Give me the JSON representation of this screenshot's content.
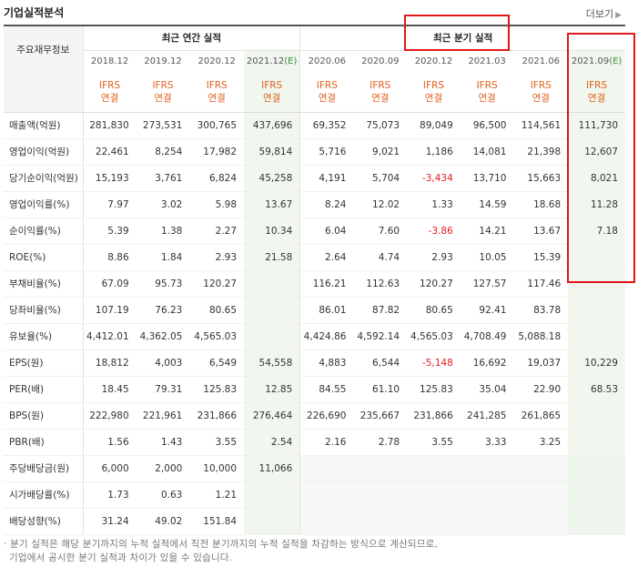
{
  "section_title": "기업실적분석",
  "more_label": "더보기",
  "row_header_label": "주요재무정보",
  "groups": {
    "annual": "최근 연간 실적",
    "quarterly": "최근 분기 실적"
  },
  "columns": [
    {
      "period": "2018.12",
      "est": "",
      "ifrs": "IFRS",
      "basis": "연결"
    },
    {
      "period": "2019.12",
      "est": "",
      "ifrs": "IFRS",
      "basis": "연결"
    },
    {
      "period": "2020.12",
      "est": "",
      "ifrs": "IFRS",
      "basis": "연결"
    },
    {
      "period": "2021.12",
      "est": "(E)",
      "ifrs": "IFRS",
      "basis": "연결"
    },
    {
      "period": "2020.06",
      "est": "",
      "ifrs": "IFRS",
      "basis": "연결"
    },
    {
      "period": "2020.09",
      "est": "",
      "ifrs": "IFRS",
      "basis": "연결"
    },
    {
      "period": "2020.12",
      "est": "",
      "ifrs": "IFRS",
      "basis": "연결"
    },
    {
      "period": "2021.03",
      "est": "",
      "ifrs": "IFRS",
      "basis": "연결"
    },
    {
      "period": "2021.06",
      "est": "",
      "ifrs": "IFRS",
      "basis": "연결"
    },
    {
      "period": "2021.09",
      "est": "(E)",
      "ifrs": "IFRS",
      "basis": "연결"
    }
  ],
  "rows": [
    {
      "label": "매출액(억원)",
      "values": [
        "281,830",
        "273,531",
        "300,765",
        "437,696",
        "69,352",
        "75,073",
        "89,049",
        "96,500",
        "114,561",
        "111,730"
      ]
    },
    {
      "label": "영업이익(억원)",
      "values": [
        "22,461",
        "8,254",
        "17,982",
        "59,814",
        "5,716",
        "9,021",
        "1,186",
        "14,081",
        "21,398",
        "12,607"
      ]
    },
    {
      "label": "당기순이익(억원)",
      "values": [
        "15,193",
        "3,761",
        "6,824",
        "45,258",
        "4,191",
        "5,704",
        "-3,434",
        "13,710",
        "15,663",
        "8,021"
      ]
    },
    {
      "label": "영업이익률(%)",
      "values": [
        "7.97",
        "3.02",
        "5.98",
        "13.67",
        "8.24",
        "12.02",
        "1.33",
        "14.59",
        "18.68",
        "11.28"
      ]
    },
    {
      "label": "순이익률(%)",
      "values": [
        "5.39",
        "1.38",
        "2.27",
        "10.34",
        "6.04",
        "7.60",
        "-3.86",
        "14.21",
        "13.67",
        "7.18"
      ]
    },
    {
      "label": "ROE(%)",
      "values": [
        "8.86",
        "1.84",
        "2.93",
        "21.58",
        "2.64",
        "4.74",
        "2.93",
        "10.05",
        "15.39",
        ""
      ]
    },
    {
      "label": "부채비율(%)",
      "values": [
        "67.09",
        "95.73",
        "120.27",
        "",
        "116.21",
        "112.63",
        "120.27",
        "127.57",
        "117.46",
        ""
      ]
    },
    {
      "label": "당좌비율(%)",
      "values": [
        "107.19",
        "76.23",
        "80.65",
        "",
        "86.01",
        "87.82",
        "80.65",
        "92.41",
        "83.78",
        ""
      ]
    },
    {
      "label": "유보율(%)",
      "values": [
        "4,412.01",
        "4,362.05",
        "4,565.03",
        "",
        "4,424.86",
        "4,592.14",
        "4,565.03",
        "4,708.49",
        "5,088.18",
        ""
      ]
    },
    {
      "label": "EPS(원)",
      "values": [
        "18,812",
        "4,003",
        "6,549",
        "54,558",
        "4,883",
        "6,544",
        "-5,148",
        "16,692",
        "19,037",
        "10,229"
      ]
    },
    {
      "label": "PER(배)",
      "values": [
        "18.45",
        "79.31",
        "125.83",
        "12.85",
        "84.55",
        "61.10",
        "125.83",
        "35.04",
        "22.90",
        "68.53"
      ]
    },
    {
      "label": "BPS(원)",
      "values": [
        "222,980",
        "221,961",
        "231,866",
        "276,464",
        "226,690",
        "235,667",
        "231,866",
        "241,285",
        "261,865",
        ""
      ]
    },
    {
      "label": "PBR(배)",
      "values": [
        "1.56",
        "1.43",
        "3.55",
        "2.54",
        "2.16",
        "2.78",
        "3.55",
        "3.33",
        "3.25",
        ""
      ]
    },
    {
      "label": "주당배당금(원)",
      "values": [
        "6,000",
        "2,000",
        "10,000",
        "11,066",
        "",
        "",
        "",
        "",
        "",
        ""
      ]
    },
    {
      "label": "시가배당률(%)",
      "values": [
        "1.73",
        "0.63",
        "1.21",
        "",
        "",
        "",
        "",
        "",
        "",
        ""
      ]
    },
    {
      "label": "배당성향(%)",
      "values": [
        "31.24",
        "49.02",
        "151.84",
        "",
        "",
        "",
        "",
        "",
        "",
        ""
      ]
    }
  ],
  "notes": [
    "· 분기 실적은 해당 분기까지의 누적 실적에서 직전 분기까지의 누적 실적을 차감하는 방식으로 계산되므로,",
    "  기업에서 공시한 분기 실적과 차이가 있을 수 있습니다."
  ],
  "colors": {
    "ifrs": "#e0601b",
    "negative": "#e32020",
    "estimate": "#3a8a3a",
    "highlight_box": "#e01818"
  }
}
